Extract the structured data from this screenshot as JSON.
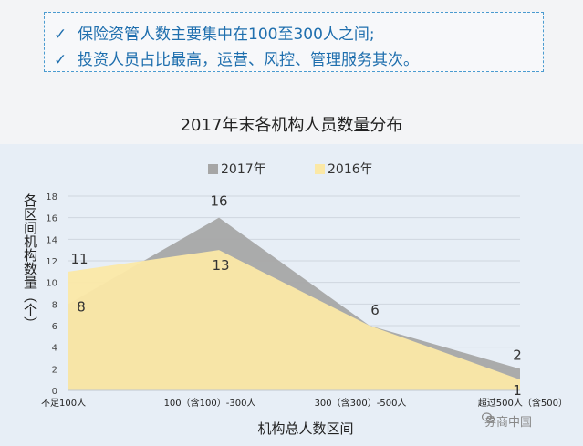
{
  "notes": {
    "check_icon": "✓",
    "line1": "保险资管人数主要集中在100至300人之间;",
    "line2": "投资人员占比最高，运营、风控、管理服务其次。"
  },
  "watermark": {
    "icon": "wechat-icon",
    "text": "券商中国"
  },
  "chart_data": {
    "type": "area",
    "title": "2017年末各机构人员数量分布",
    "xlabel": "机构总人数区间",
    "ylabel": "各区间机构数量（个）",
    "categories": [
      "不足100人",
      "100（含100）-300人",
      "300（含300）-500人",
      "超过500人（含500）"
    ],
    "ylim": [
      0,
      18
    ],
    "yticks": [
      0,
      2,
      4,
      6,
      8,
      10,
      12,
      14,
      16,
      18
    ],
    "grid": true,
    "legend_position": "top",
    "series": [
      {
        "name": "2017年",
        "values": [
          8,
          16,
          6,
          2
        ],
        "color": "#a6a6a6"
      },
      {
        "name": "2016年",
        "values": [
          11,
          13,
          6,
          1
        ],
        "color": "#fbe8a6"
      }
    ]
  }
}
